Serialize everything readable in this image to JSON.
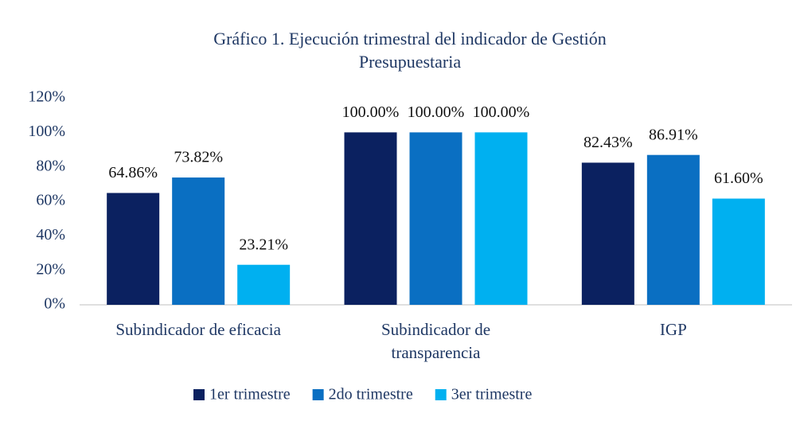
{
  "chart_data": {
    "type": "bar",
    "title": "Gráfico 1. Ejecución trimestral del indicador de Gestión Presupuestaria",
    "categories": [
      "Subindicador de eficacia",
      "Subindicador de transparencia",
      "IGP"
    ],
    "series": [
      {
        "name": "1er trimestre",
        "color": "#0b2160",
        "values": [
          64.86,
          100.0,
          82.43
        ],
        "value_labels": [
          "64.86%",
          "100.00%",
          "82.43%"
        ]
      },
      {
        "name": "2do trimestre",
        "color": "#0a6fc2",
        "values": [
          73.82,
          100.0,
          86.91
        ],
        "value_labels": [
          "73.82%",
          "100.00%",
          "86.91%"
        ]
      },
      {
        "name": "3er trimestre",
        "color": "#00b0f0",
        "values": [
          23.21,
          100.0,
          61.6
        ],
        "value_labels": [
          "23.21%",
          "100.00%",
          "61.60%"
        ]
      }
    ],
    "ylim": [
      0,
      120
    ],
    "yticks": [
      {
        "value": 0,
        "label": "0%"
      },
      {
        "value": 20,
        "label": "20%"
      },
      {
        "value": 40,
        "label": "40%"
      },
      {
        "value": 60,
        "label": "60%"
      },
      {
        "value": 80,
        "label": "80%"
      },
      {
        "value": 100,
        "label": "100%"
      },
      {
        "value": 120,
        "label": "120%"
      }
    ],
    "legend": "bottom"
  }
}
